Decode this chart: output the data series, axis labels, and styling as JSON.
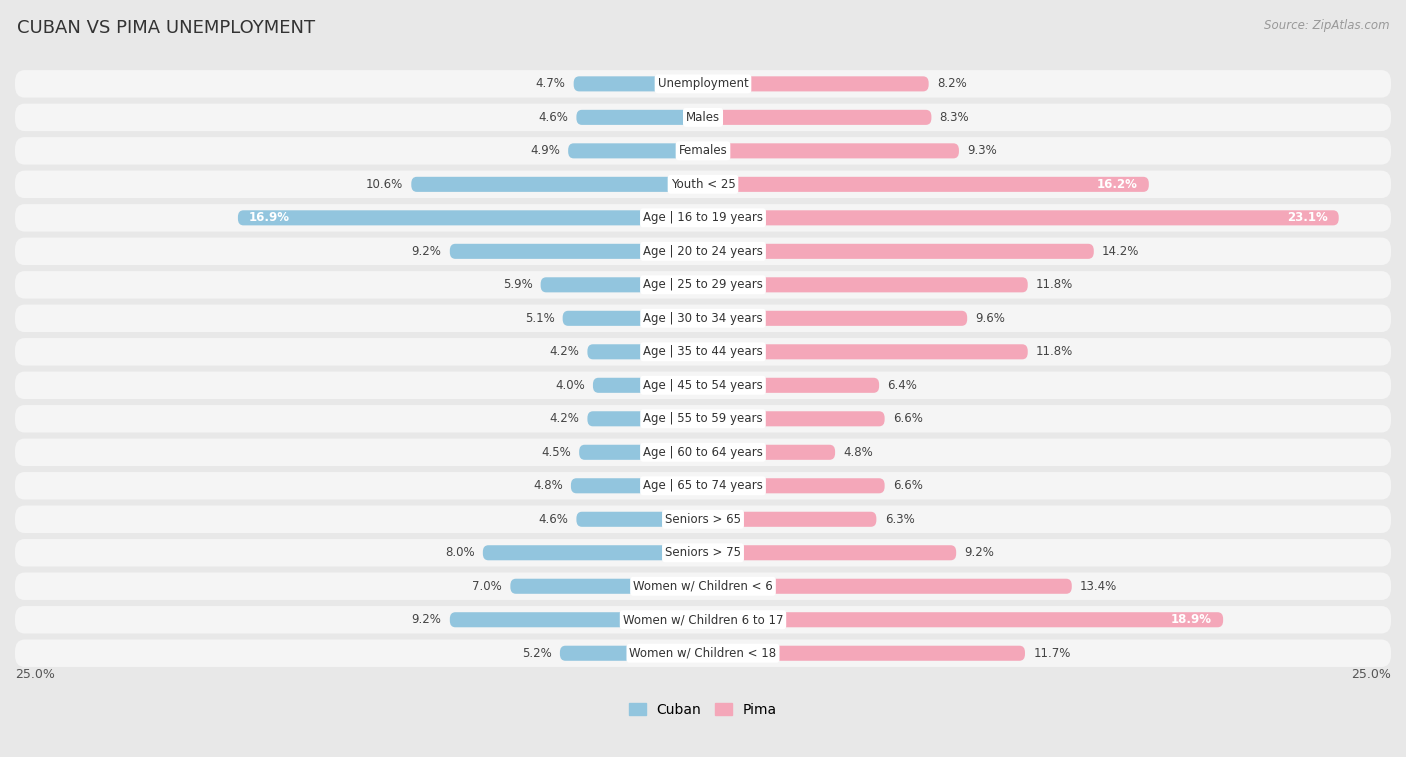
{
  "title": "CUBAN VS PIMA UNEMPLOYMENT",
  "source": "Source: ZipAtlas.com",
  "categories": [
    "Unemployment",
    "Males",
    "Females",
    "Youth < 25",
    "Age | 16 to 19 years",
    "Age | 20 to 24 years",
    "Age | 25 to 29 years",
    "Age | 30 to 34 years",
    "Age | 35 to 44 years",
    "Age | 45 to 54 years",
    "Age | 55 to 59 years",
    "Age | 60 to 64 years",
    "Age | 65 to 74 years",
    "Seniors > 65",
    "Seniors > 75",
    "Women w/ Children < 6",
    "Women w/ Children 6 to 17",
    "Women w/ Children < 18"
  ],
  "cuban": [
    4.7,
    4.6,
    4.9,
    10.6,
    16.9,
    9.2,
    5.9,
    5.1,
    4.2,
    4.0,
    4.2,
    4.5,
    4.8,
    4.6,
    8.0,
    7.0,
    9.2,
    5.2
  ],
  "pima": [
    8.2,
    8.3,
    9.3,
    16.2,
    23.1,
    14.2,
    11.8,
    9.6,
    11.8,
    6.4,
    6.6,
    4.8,
    6.6,
    6.3,
    9.2,
    13.4,
    18.9,
    11.7
  ],
  "cuban_color": "#92C5DE",
  "pima_color": "#F4A7B9",
  "bg_color": "#e8e8e8",
  "row_bg_color": "#f5f5f5",
  "axis_max": 25.0,
  "legend_cuban": "Cuban",
  "legend_pima": "Pima",
  "title_fontsize": 13,
  "label_fontsize": 8.5,
  "value_fontsize": 8.5
}
